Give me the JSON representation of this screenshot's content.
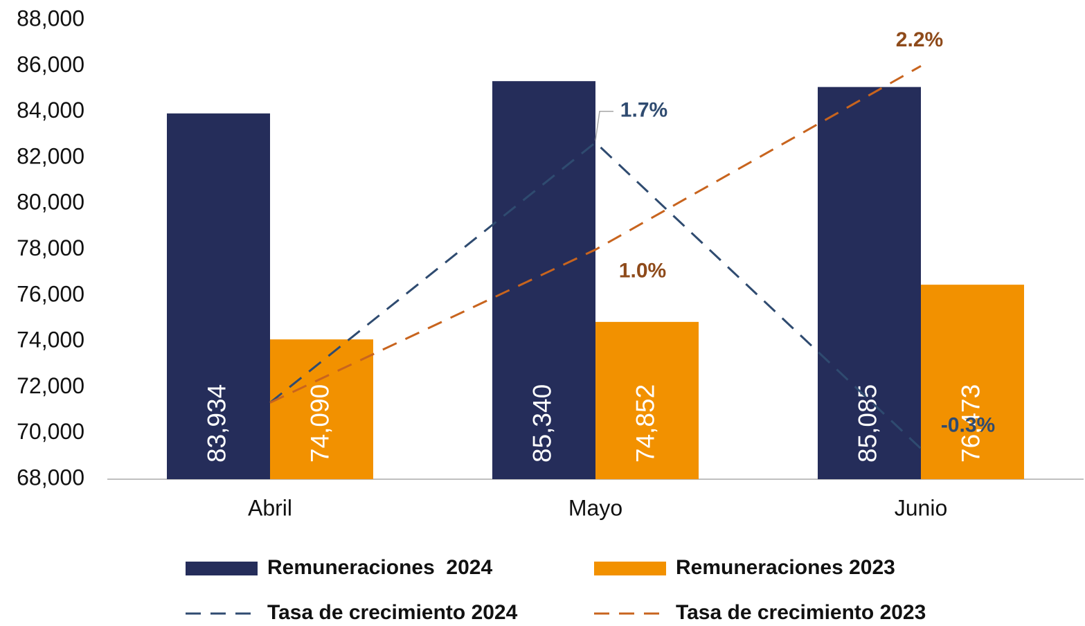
{
  "chart_data": {
    "type": "bar",
    "categories": [
      "Abril",
      "Mayo",
      "Junio"
    ],
    "ylim": [
      68000,
      88000
    ],
    "yticks": [
      {
        "value": 68000,
        "label": "68,000"
      },
      {
        "value": 70000,
        "label": "70,000"
      },
      {
        "value": 72000,
        "label": "72,000"
      },
      {
        "value": 74000,
        "label": "74,000"
      },
      {
        "value": 76000,
        "label": "76,000"
      },
      {
        "value": 78000,
        "label": "78,000"
      },
      {
        "value": 80000,
        "label": "80,000"
      },
      {
        "value": 82000,
        "label": "82,000"
      },
      {
        "value": 84000,
        "label": "84,000"
      },
      {
        "value": 86000,
        "label": "86,000"
      },
      {
        "value": 88000,
        "label": "88,000"
      }
    ],
    "y2lim": [
      -0.5,
      2.5
    ],
    "legend": "bottom",
    "series": [
      {
        "name": "Remuneraciones  2024",
        "type": "bar",
        "color": "#252d5a",
        "label_color": "#ffffff",
        "values": [
          83934,
          85340,
          85085
        ],
        "value_labels": [
          "83,934",
          "85,340",
          "85,085"
        ]
      },
      {
        "name": "Remuneraciones 2023",
        "type": "bar",
        "color": "#f29100",
        "label_color": "#ffffff",
        "values": [
          74090,
          74852,
          76473
        ],
        "value_labels": [
          "74,090",
          "74,852",
          "76,473"
        ]
      },
      {
        "name": "Tasa de crecimiento 2024",
        "type": "line",
        "axis": "y2",
        "color": "#2f4b70",
        "label_color": "#2f4b70",
        "values": [
          0,
          1.7,
          -0.3
        ],
        "value_labels": [
          null,
          "1.7%",
          "-0.3%"
        ]
      },
      {
        "name": "Tasa de crecimiento 2023",
        "type": "line",
        "axis": "y2",
        "color": "#c8641e",
        "label_color": "#8e4a1a",
        "values": [
          0,
          1.0,
          2.2
        ],
        "value_labels": [
          null,
          "1.0%",
          "2.2%"
        ]
      }
    ]
  }
}
